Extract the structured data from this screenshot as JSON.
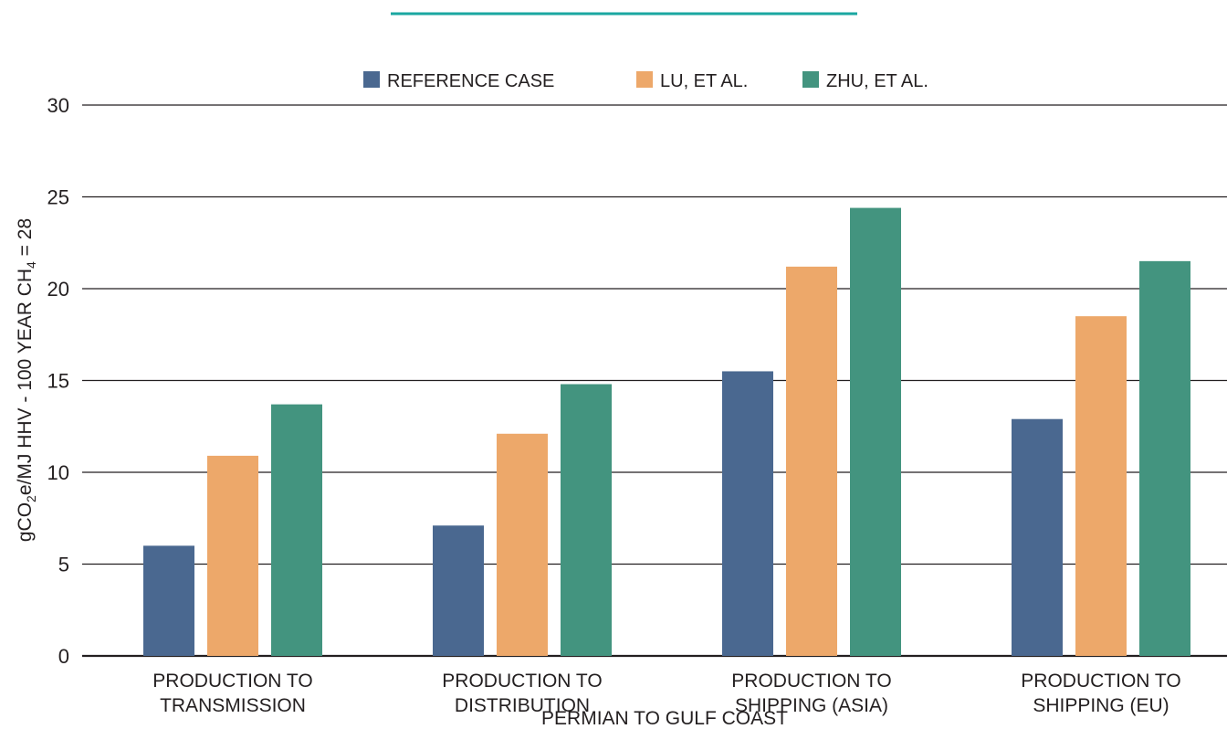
{
  "colors": {
    "accent_line": "#1aa7a1",
    "reference": "#4a6890",
    "lu": "#eda86a",
    "zhu": "#43947f",
    "grid": "#231f20"
  },
  "chart_data": {
    "type": "bar",
    "title": "",
    "xlabel": "PERMIAN TO GULF COAST",
    "ylabel": {
      "prefix": "gCO",
      "sub1": "2",
      "middle": "e/MJ HHV - 100 YEAR CH",
      "sub2": "4",
      "suffix": " = 28"
    },
    "ylim": [
      0,
      30
    ],
    "yticks": [
      0,
      5,
      10,
      15,
      20,
      25,
      30
    ],
    "grid": true,
    "legend_position": "top",
    "categories": [
      [
        "PRODUCTION TO",
        "TRANSMISSION"
      ],
      [
        "PRODUCTION TO",
        "DISTRIBUTION"
      ],
      [
        "PRODUCTION TO",
        "SHIPPING (ASIA)"
      ],
      [
        "PRODUCTION TO",
        "SHIPPING (EU)"
      ]
    ],
    "series": [
      {
        "name": "REFERENCE CASE",
        "color_key": "reference",
        "values": [
          6.0,
          7.1,
          15.5,
          12.9
        ]
      },
      {
        "name": "LU, ET AL.",
        "color_key": "lu",
        "values": [
          10.9,
          12.1,
          21.2,
          18.5
        ]
      },
      {
        "name": "ZHU, ET AL.",
        "color_key": "zhu",
        "values": [
          13.7,
          14.8,
          24.4,
          21.5
        ]
      }
    ]
  }
}
